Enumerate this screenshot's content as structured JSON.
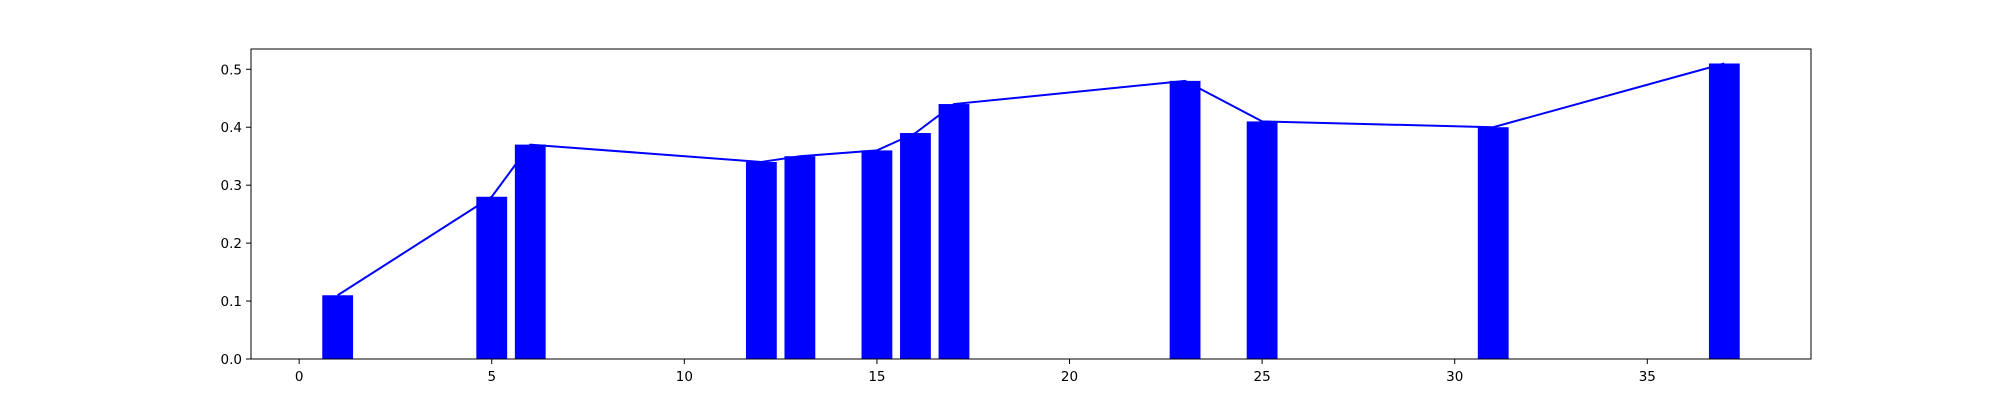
{
  "chart_data": {
    "type": "bar",
    "title": "",
    "xlabel": "",
    "ylabel": "",
    "x": [
      1,
      5,
      6,
      12,
      13,
      15,
      16,
      17,
      23,
      25,
      31,
      37
    ],
    "values": [
      0.11,
      0.28,
      0.37,
      0.34,
      0.35,
      0.36,
      0.39,
      0.44,
      0.48,
      0.41,
      0.4,
      0.51
    ],
    "overlay_line": {
      "type": "line",
      "x": [
        1,
        5,
        6,
        12,
        13,
        15,
        16,
        17,
        23,
        25,
        31,
        37
      ],
      "values": [
        0.11,
        0.28,
        0.37,
        0.34,
        0.35,
        0.36,
        0.39,
        0.44,
        0.48,
        0.41,
        0.4,
        0.51
      ]
    },
    "bar_width": 0.8,
    "xlim": [
      -1.25,
      39.25
    ],
    "ylim": [
      0,
      0.535
    ],
    "xticks": [
      0,
      5,
      10,
      15,
      20,
      25,
      30,
      35
    ],
    "yticks": [
      0.0,
      0.1,
      0.2,
      0.3,
      0.4,
      0.5
    ],
    "xtick_labels": [
      "0",
      "5",
      "10",
      "15",
      "20",
      "25",
      "30",
      "35"
    ],
    "ytick_labels": [
      "0.0",
      "0.1",
      "0.2",
      "0.3",
      "0.4",
      "0.5"
    ],
    "grid": false,
    "colors": {
      "bar": "#0000ff",
      "line": "#0000ff"
    }
  }
}
